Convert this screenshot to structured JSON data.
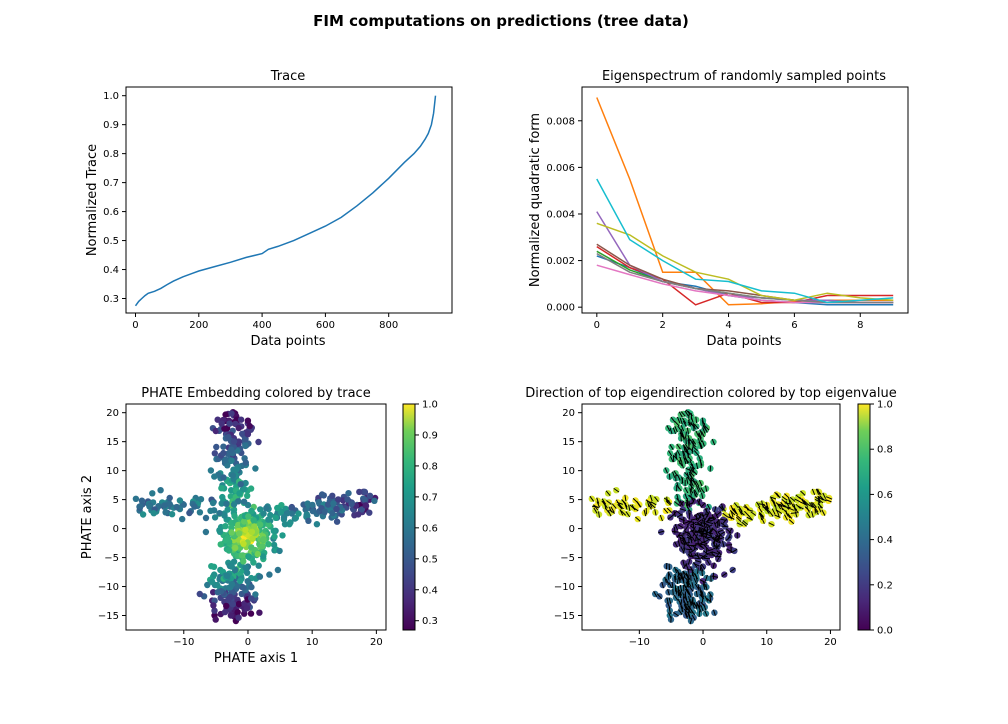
{
  "figure": {
    "title": "FIM computations on predictions (tree data)"
  },
  "chart_data": [
    {
      "type": "line",
      "title": "Trace",
      "xlabel": "Data points",
      "ylabel": "Normalized Trace",
      "xlim": [
        -30,
        1000
      ],
      "ylim": [
        0.25,
        1.03
      ],
      "xticks": [
        0,
        200,
        400,
        600,
        800
      ],
      "yticks": [
        0.3,
        0.4,
        0.5,
        0.6,
        0.7,
        0.8,
        0.9,
        1.0
      ],
      "ytick_labels": [
        "0.3",
        "0.4",
        "0.5",
        "0.6",
        "0.7",
        "0.8",
        "0.9",
        "1.0"
      ],
      "series": [
        {
          "color": "#1f77b4",
          "x": [
            0,
            10,
            20,
            30,
            40,
            60,
            80,
            100,
            120,
            150,
            180,
            200,
            250,
            300,
            350,
            400,
            420,
            450,
            500,
            550,
            600,
            650,
            700,
            750,
            800,
            850,
            880,
            900,
            915,
            925,
            935,
            942,
            948
          ],
          "y": [
            0.275,
            0.29,
            0.3,
            0.31,
            0.318,
            0.325,
            0.335,
            0.348,
            0.36,
            0.375,
            0.387,
            0.395,
            0.41,
            0.425,
            0.442,
            0.455,
            0.47,
            0.48,
            0.5,
            0.525,
            0.55,
            0.58,
            0.62,
            0.665,
            0.715,
            0.77,
            0.8,
            0.825,
            0.85,
            0.87,
            0.9,
            0.94,
            1.0
          ]
        }
      ]
    },
    {
      "type": "line",
      "title": "Eigenspectrum of randomly sampled points",
      "xlabel": "Data points",
      "ylabel": "Normalized quadratic form",
      "xlim": [
        -0.45,
        9.45
      ],
      "ylim": [
        -0.00025,
        0.00945
      ],
      "xticks": [
        0,
        2,
        4,
        6,
        8
      ],
      "yticks": [
        0.0,
        0.002,
        0.004,
        0.006,
        0.008
      ],
      "ytick_labels": [
        "0.000",
        "0.002",
        "0.004",
        "0.006",
        "0.008"
      ],
      "x": [
        0,
        1,
        2,
        3,
        4,
        5,
        6,
        7,
        8,
        9
      ],
      "series": [
        {
          "color": "#1f77b4",
          "values": [
            0.0022,
            0.0017,
            0.0011,
            0.0009,
            0.0005,
            0.0003,
            0.0002,
            0.0001,
            0.0001,
            0.0001
          ]
        },
        {
          "color": "#ff7f0e",
          "values": [
            0.009,
            0.0055,
            0.0015,
            0.0015,
            0.0001,
            0.00015,
            0.00025,
            0.0003,
            0.0003,
            0.0003
          ]
        },
        {
          "color": "#2ca02c",
          "values": [
            0.0024,
            0.0016,
            0.0011,
            0.0008,
            0.0006,
            0.0004,
            0.0003,
            0.0003,
            0.0002,
            0.0002
          ]
        },
        {
          "color": "#d62728",
          "values": [
            0.0026,
            0.0017,
            0.0012,
            0.0001,
            0.0006,
            0.0002,
            0.0002,
            0.0005,
            0.0005,
            0.0005
          ]
        },
        {
          "color": "#9467bd",
          "values": [
            0.0041,
            0.0018,
            0.0011,
            0.0008,
            0.0005,
            0.0004,
            0.0003,
            0.0003,
            0.0002,
            0.0002
          ]
        },
        {
          "color": "#8c564b",
          "values": [
            0.0027,
            0.0018,
            0.0012,
            0.0008,
            0.0007,
            0.0005,
            0.0003,
            0.0002,
            0.0002,
            0.0002
          ]
        },
        {
          "color": "#e377c2",
          "values": [
            0.0018,
            0.0014,
            0.001,
            0.0007,
            0.0005,
            0.0003,
            0.0002,
            0.0002,
            0.0002,
            0.0002
          ]
        },
        {
          "color": "#7f7f7f",
          "values": [
            0.0023,
            0.0015,
            0.0011,
            0.0008,
            0.0006,
            0.0004,
            0.0003,
            0.0002,
            0.0002,
            0.0002
          ]
        },
        {
          "color": "#bcbd22",
          "values": [
            0.0036,
            0.0031,
            0.0022,
            0.0015,
            0.0012,
            0.0005,
            0.0003,
            0.0006,
            0.0004,
            0.0003
          ]
        },
        {
          "color": "#17becf",
          "values": [
            0.0055,
            0.0029,
            0.002,
            0.0012,
            0.0011,
            0.0007,
            0.0006,
            0.0002,
            0.0003,
            0.0004
          ]
        }
      ]
    },
    {
      "type": "scatter",
      "title": "PHATE Embedding colored by trace",
      "xlabel": "PHATE axis 1",
      "ylabel": "PHATE axis 2",
      "xlim": [
        -19,
        21.5
      ],
      "ylim": [
        -17.5,
        21.5
      ],
      "xticks": [
        -10,
        0,
        10,
        20
      ],
      "yticks": [
        -15,
        -10,
        -5,
        0,
        5,
        10,
        15,
        20
      ],
      "colormap": "viridis",
      "colorbar": {
        "min": 0.27,
        "max": 1.0,
        "ticks": [
          0.3,
          0.4,
          0.5,
          0.6,
          0.7,
          0.8,
          0.9,
          1.0
        ],
        "tick_labels": [
          "0.3",
          "0.4",
          "0.5",
          "0.6",
          "0.7",
          "0.8",
          "0.9",
          "1.0"
        ]
      },
      "description_of_points": "four-armed tree: upper arm x~-3..0 y 5..20, left arm x -17..-5 y~4, right arm x 5..19 y~3..5, lower arm x -6..0 y -15..-8; center points (y -6..3) high trace (0.8-1.0), arm tips low trace (0.3-0.45)"
    },
    {
      "type": "scatter",
      "title": "Direction of top eigendirection colored by top eigenvalue",
      "xlabel": "",
      "ylabel": "",
      "xlim": [
        -19,
        21.5
      ],
      "ylim": [
        -17.5,
        21.5
      ],
      "xticks": [
        -10,
        0,
        10,
        20
      ],
      "yticks": [
        -15,
        -10,
        -5,
        0,
        5,
        10,
        15,
        20
      ],
      "colormap": "viridis",
      "colorbar": {
        "min": 0.0,
        "max": 1.0,
        "ticks": [
          0.0,
          0.2,
          0.4,
          0.6,
          0.8,
          1.0
        ],
        "tick_labels": [
          "0.0",
          "0.2",
          "0.4",
          "0.6",
          "0.8",
          "1.0"
        ]
      },
      "description_of_points": "same embedding; left and right arms yellow (~1.0), upper arm green (~0.65), lower arm teal/blue (~0.35), center dark purple (~0.05); each point carries a short black direction tick"
    }
  ]
}
